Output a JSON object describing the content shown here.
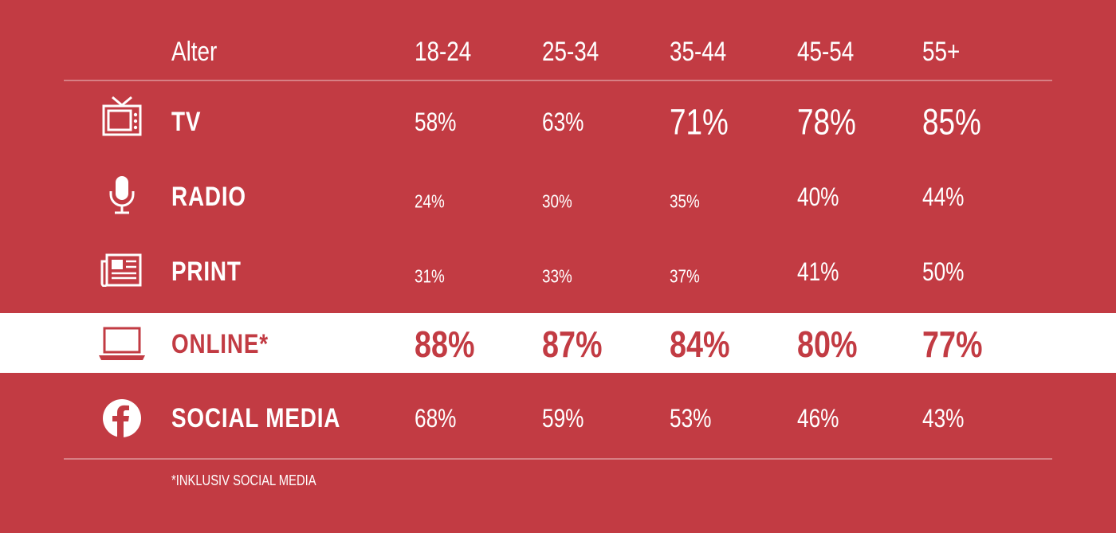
{
  "header": {
    "label": "Alter",
    "columns": [
      "18-24",
      "25-34",
      "35-44",
      "45-54",
      "55+"
    ]
  },
  "rows": [
    {
      "label": "TV",
      "values": [
        "58%",
        "63%",
        "71%",
        "78%",
        "85%"
      ]
    },
    {
      "label": "RADIO",
      "values": [
        "24%",
        "30%",
        "35%",
        "40%",
        "44%"
      ]
    },
    {
      "label": "PRINT",
      "values": [
        "31%",
        "33%",
        "37%",
        "41%",
        "50%"
      ]
    },
    {
      "label": "ONLINE*",
      "values": [
        "88%",
        "87%",
        "84%",
        "80%",
        "77%"
      ]
    },
    {
      "label": "SOCIAL MEDIA",
      "values": [
        "68%",
        "59%",
        "53%",
        "46%",
        "43%"
      ]
    }
  ],
  "footnote": "*INKLUSIV SOCIAL MEDIA"
}
